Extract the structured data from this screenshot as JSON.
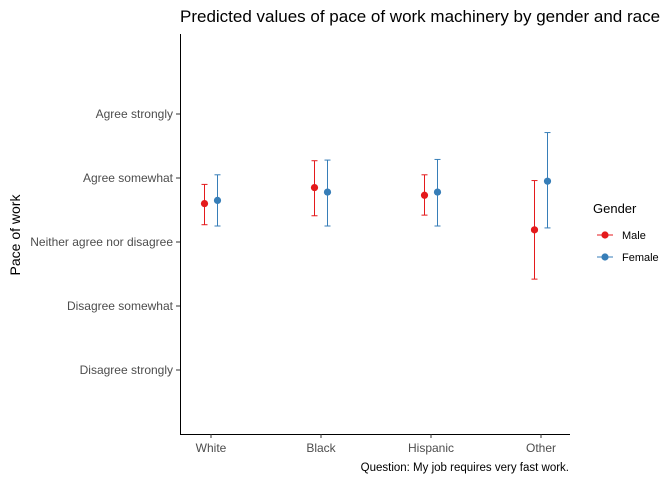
{
  "chart_data": {
    "type": "scatter",
    "title": "Predicted values of pace of work machinery by gender and race",
    "xlabel": "",
    "ylabel": "Pace of work",
    "caption": "Question: My job requires very fast work.",
    "categories": [
      "White",
      "Black",
      "Hispanic",
      "Other"
    ],
    "y_ticks": [
      {
        "value": 1,
        "label": "Disagree strongly"
      },
      {
        "value": 2,
        "label": "Disagree somewhat"
      },
      {
        "value": 3,
        "label": "Neither agree nor disagree"
      },
      {
        "value": 4,
        "label": "Agree somewhat"
      },
      {
        "value": 5,
        "label": "Agree strongly"
      }
    ],
    "ylim": [
      0,
      6.25
    ],
    "grid": false,
    "legend": {
      "title": "Gender",
      "position": "right"
    },
    "series": [
      {
        "name": "Male",
        "color": "#e41a1c",
        "values": [
          3.6,
          3.85,
          3.73,
          3.19
        ],
        "lower": [
          3.27,
          3.41,
          3.42,
          2.42
        ],
        "upper": [
          3.9,
          4.27,
          4.05,
          3.96
        ]
      },
      {
        "name": "Female",
        "color": "#377eb8",
        "values": [
          3.65,
          3.78,
          3.78,
          3.95
        ],
        "lower": [
          3.25,
          3.25,
          3.25,
          3.22
        ],
        "upper": [
          4.05,
          4.28,
          4.29,
          4.71
        ]
      }
    ]
  }
}
